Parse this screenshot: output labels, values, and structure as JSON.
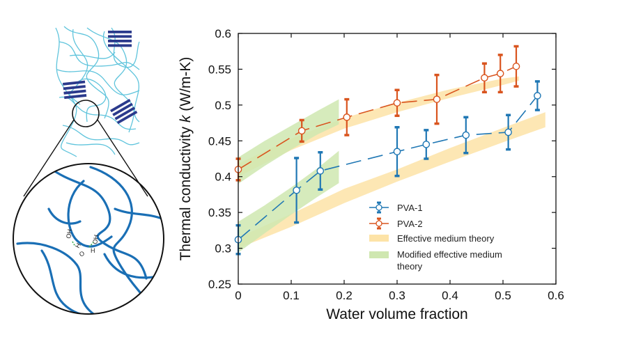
{
  "colors": {
    "pva1": "#1f77b4",
    "pva2": "#d9541e",
    "emt": "#fde3a7",
    "memt": "#cfe7b0",
    "crystal": "#2b3a8c",
    "chain_light": "#5fc4dc",
    "chain_dark": "#1a6fb5"
  },
  "icons": [
    "polymer-network-icon",
    "crystallite-icon",
    "hydrogen-bond-zoom-icon"
  ],
  "schematic_labels": [
    "OH",
    "O",
    "H",
    "H",
    "OH"
  ],
  "chart_data": {
    "type": "scatter",
    "xlabel": "Water volume fraction",
    "ylabel": "Thermal conductivity k (W/m-K)",
    "xlim": [
      0,
      0.6
    ],
    "ylim": [
      0.25,
      0.6
    ],
    "xticks": [
      "0",
      "0.1",
      "0.2",
      "0.3",
      "0.4",
      "0.5",
      "0.6"
    ],
    "yticks": [
      "0.25",
      "0.3",
      "0.35",
      "0.4",
      "0.45",
      "0.5",
      "0.55",
      "0.6"
    ],
    "grid": false,
    "legend_position": "bottom-center",
    "legend": [
      "PVA-1",
      "PVA-2",
      "Effective medium theory",
      "Modified effective medium theory"
    ],
    "series": [
      {
        "name": "PVA-1",
        "x": [
          0,
          0.11,
          0.155,
          0.3,
          0.355,
          0.43,
          0.51,
          0.565
        ],
        "y": [
          0.312,
          0.381,
          0.408,
          0.435,
          0.445,
          0.458,
          0.462,
          0.513
        ],
        "err": [
          0.02,
          0.045,
          0.026,
          0.034,
          0.02,
          0.025,
          0.024,
          0.02
        ]
      },
      {
        "name": "PVA-2",
        "x": [
          0,
          0.12,
          0.205,
          0.3,
          0.375,
          0.465,
          0.495,
          0.525
        ],
        "y": [
          0.41,
          0.464,
          0.483,
          0.503,
          0.508,
          0.538,
          0.544,
          0.554
        ],
        "err": [
          0.015,
          0.015,
          0.025,
          0.018,
          0.034,
          0.02,
          0.026,
          0.028
        ]
      }
    ],
    "bands": [
      {
        "name": "Effective medium theory",
        "x": [
          0,
          0.1,
          0.2,
          0.3,
          0.4,
          0.5,
          0.58
        ],
        "lower": [
          0.3,
          0.33,
          0.363,
          0.393,
          0.421,
          0.448,
          0.469
        ],
        "upper": [
          0.315,
          0.348,
          0.383,
          0.41,
          0.44,
          0.468,
          0.49
        ]
      },
      {
        "name": "Effective medium theory",
        "x": [
          0,
          0.1,
          0.2,
          0.3,
          0.4,
          0.5,
          0.53
        ],
        "lower": [
          0.4,
          0.437,
          0.467,
          0.49,
          0.51,
          0.528,
          0.534
        ],
        "upper": [
          0.418,
          0.453,
          0.482,
          0.503,
          0.522,
          0.537,
          0.54
        ]
      },
      {
        "name": "Modified effective medium theory",
        "x": [
          0,
          0.05,
          0.1,
          0.15,
          0.19
        ],
        "lower": [
          0.294,
          0.321,
          0.347,
          0.372,
          0.391
        ],
        "upper": [
          0.337,
          0.36,
          0.385,
          0.412,
          0.436
        ]
      },
      {
        "name": "Modified effective medium theory",
        "x": [
          0,
          0.05,
          0.1,
          0.15,
          0.19
        ],
        "lower": [
          0.39,
          0.415,
          0.438,
          0.459,
          0.473
        ],
        "upper": [
          0.427,
          0.45,
          0.471,
          0.492,
          0.508
        ]
      }
    ]
  }
}
